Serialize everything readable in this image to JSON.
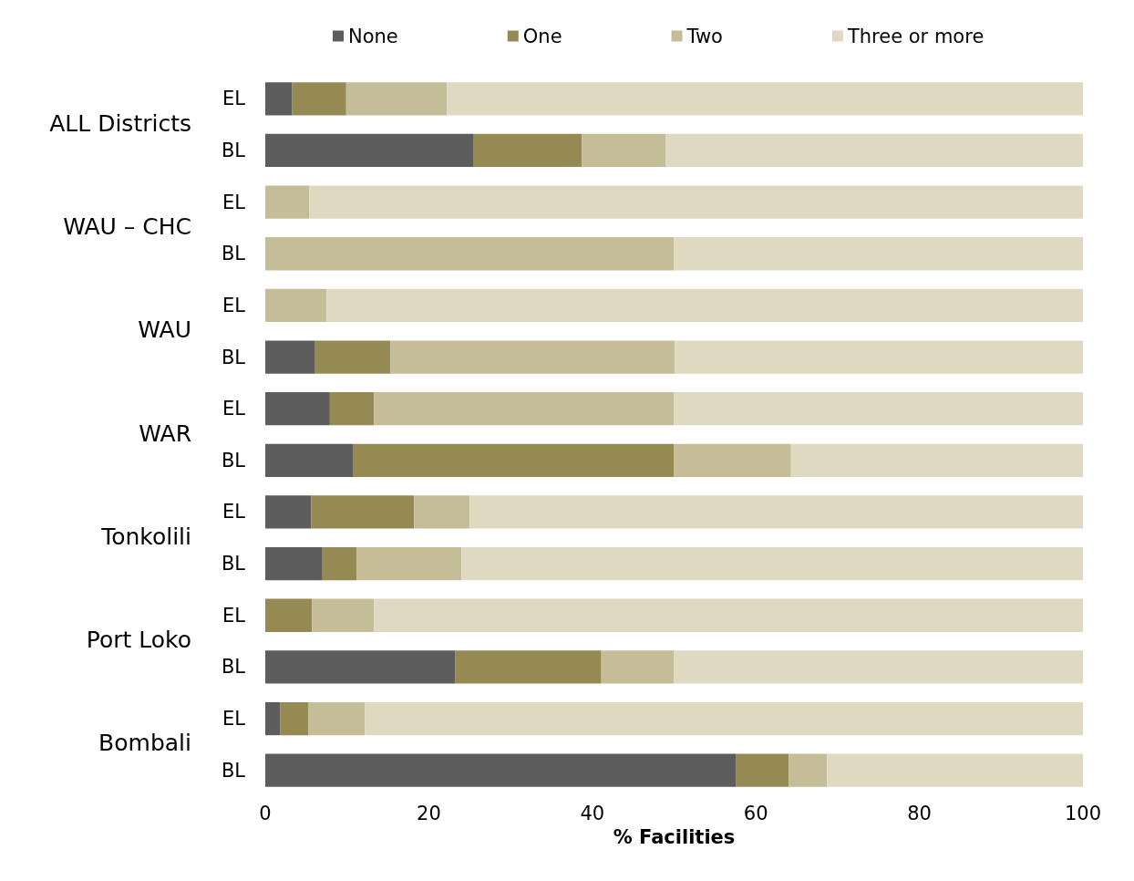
{
  "chart_data": {
    "type": "bar",
    "orientation": "horizontal",
    "stacked": true,
    "xlabel": "% Facilities",
    "categories": [
      "EL",
      "BL",
      "EL",
      "BL",
      "EL",
      "BL",
      "EL",
      "BL",
      "EL",
      "BL",
      "EL",
      "BL",
      "EL",
      "BL"
    ],
    "annotations": [
      "ALL Districts",
      "WAU – CHC",
      "WAU",
      "WAR",
      "Tonkolili",
      "Port Loko",
      "Bombali"
    ],
    "series": [
      {
        "name": "None",
        "color": "#5d5d5d",
        "values": [
          3.3,
          25.5,
          0,
          0,
          0,
          6.1,
          7.9,
          10.7,
          5.6,
          7.0,
          0,
          23.2,
          1.8,
          57.6
        ]
      },
      {
        "name": "One",
        "color": "#958a54",
        "values": [
          6.6,
          13.2,
          0,
          0,
          0,
          9.2,
          5.4,
          39.3,
          12.6,
          4.2,
          5.7,
          17.9,
          3.5,
          6.4
        ]
      },
      {
        "name": "Two",
        "color": "#c5bd97",
        "values": [
          12.3,
          10.3,
          5.4,
          50,
          7.5,
          34.8,
          36.7,
          14.3,
          6.8,
          12.8,
          7.6,
          8.9,
          6.9,
          4.7
        ]
      },
      {
        "name": "Three or more",
        "color": "#dfd9c2",
        "values": [
          77.8,
          51.0,
          94.6,
          50,
          92.5,
          50,
          50,
          35.7,
          75,
          76,
          86.7,
          50,
          87.8,
          31.3
        ]
      }
    ],
    "xlim": [
      0,
      100
    ],
    "xticks": [
      0,
      20,
      40,
      60,
      80,
      100
    ],
    "grid": false,
    "legend": "top"
  }
}
